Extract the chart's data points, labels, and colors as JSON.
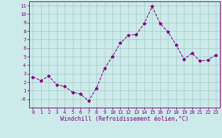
{
  "x": [
    0,
    1,
    2,
    3,
    4,
    5,
    6,
    7,
    8,
    9,
    10,
    11,
    12,
    13,
    14,
    15,
    16,
    17,
    18,
    19,
    20,
    21,
    22,
    23
  ],
  "y": [
    2.6,
    2.2,
    2.7,
    1.7,
    1.5,
    0.8,
    0.6,
    -0.2,
    1.3,
    3.6,
    5.0,
    6.6,
    7.5,
    7.6,
    8.9,
    10.9,
    8.9,
    7.9,
    6.4,
    4.7,
    5.4,
    4.5,
    4.6,
    5.2
  ],
  "line_color": "#800080",
  "marker": "*",
  "marker_size": 3,
  "bg_color": "#cceaea",
  "grid_color": "#aacccc",
  "xlabel": "Windchill (Refroidissement éolien,°C)",
  "xlim": [
    -0.5,
    23.5
  ],
  "ylim": [
    -1.0,
    11.5
  ],
  "ytick_vals": [
    0,
    1,
    2,
    3,
    4,
    5,
    6,
    7,
    8,
    9,
    10,
    11
  ],
  "ytick_labels": [
    "-0",
    "1",
    "2",
    "3",
    "4",
    "5",
    "6",
    "7",
    "8",
    "9",
    "10",
    "11"
  ],
  "xticks": [
    0,
    1,
    2,
    3,
    4,
    5,
    6,
    7,
    8,
    9,
    10,
    11,
    12,
    13,
    14,
    15,
    16,
    17,
    18,
    19,
    20,
    21,
    22,
    23
  ],
  "tick_fontsize": 5.2,
  "xlabel_fontsize": 6.0,
  "label_color": "#800080",
  "spine_color": "#800080",
  "linewidth": 0.8
}
